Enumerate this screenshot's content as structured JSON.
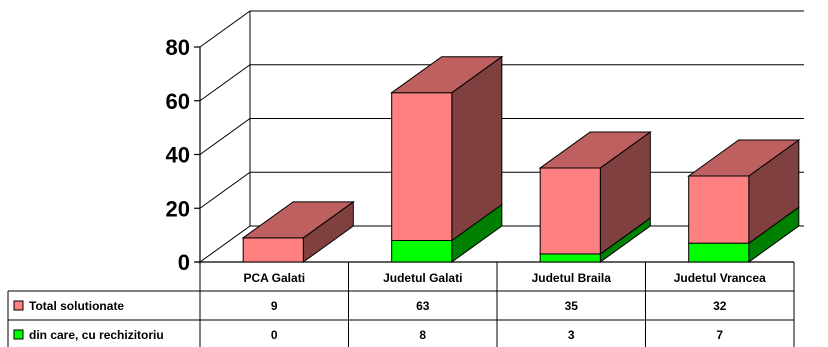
{
  "chart_data": {
    "type": "bar",
    "stacked": true,
    "three_d": true,
    "title": "",
    "xlabel": "",
    "ylabel": "",
    "ylim": [
      0,
      80
    ],
    "yticks": [
      0,
      20,
      40,
      60,
      80
    ],
    "grid": true,
    "legend": "data-table-left",
    "categories": [
      "PCA Galati",
      "Judetul Galati",
      "Judetul Braila",
      "Judetul Vrancea"
    ],
    "series": [
      {
        "name": "Total solutionate",
        "values": [
          9,
          63,
          35,
          32
        ],
        "color": "#ff8080"
      },
      {
        "name": "din care, cu rechizitoriu",
        "values": [
          0,
          8,
          3,
          7
        ],
        "color": "#00ff00"
      }
    ],
    "data_table": true
  }
}
